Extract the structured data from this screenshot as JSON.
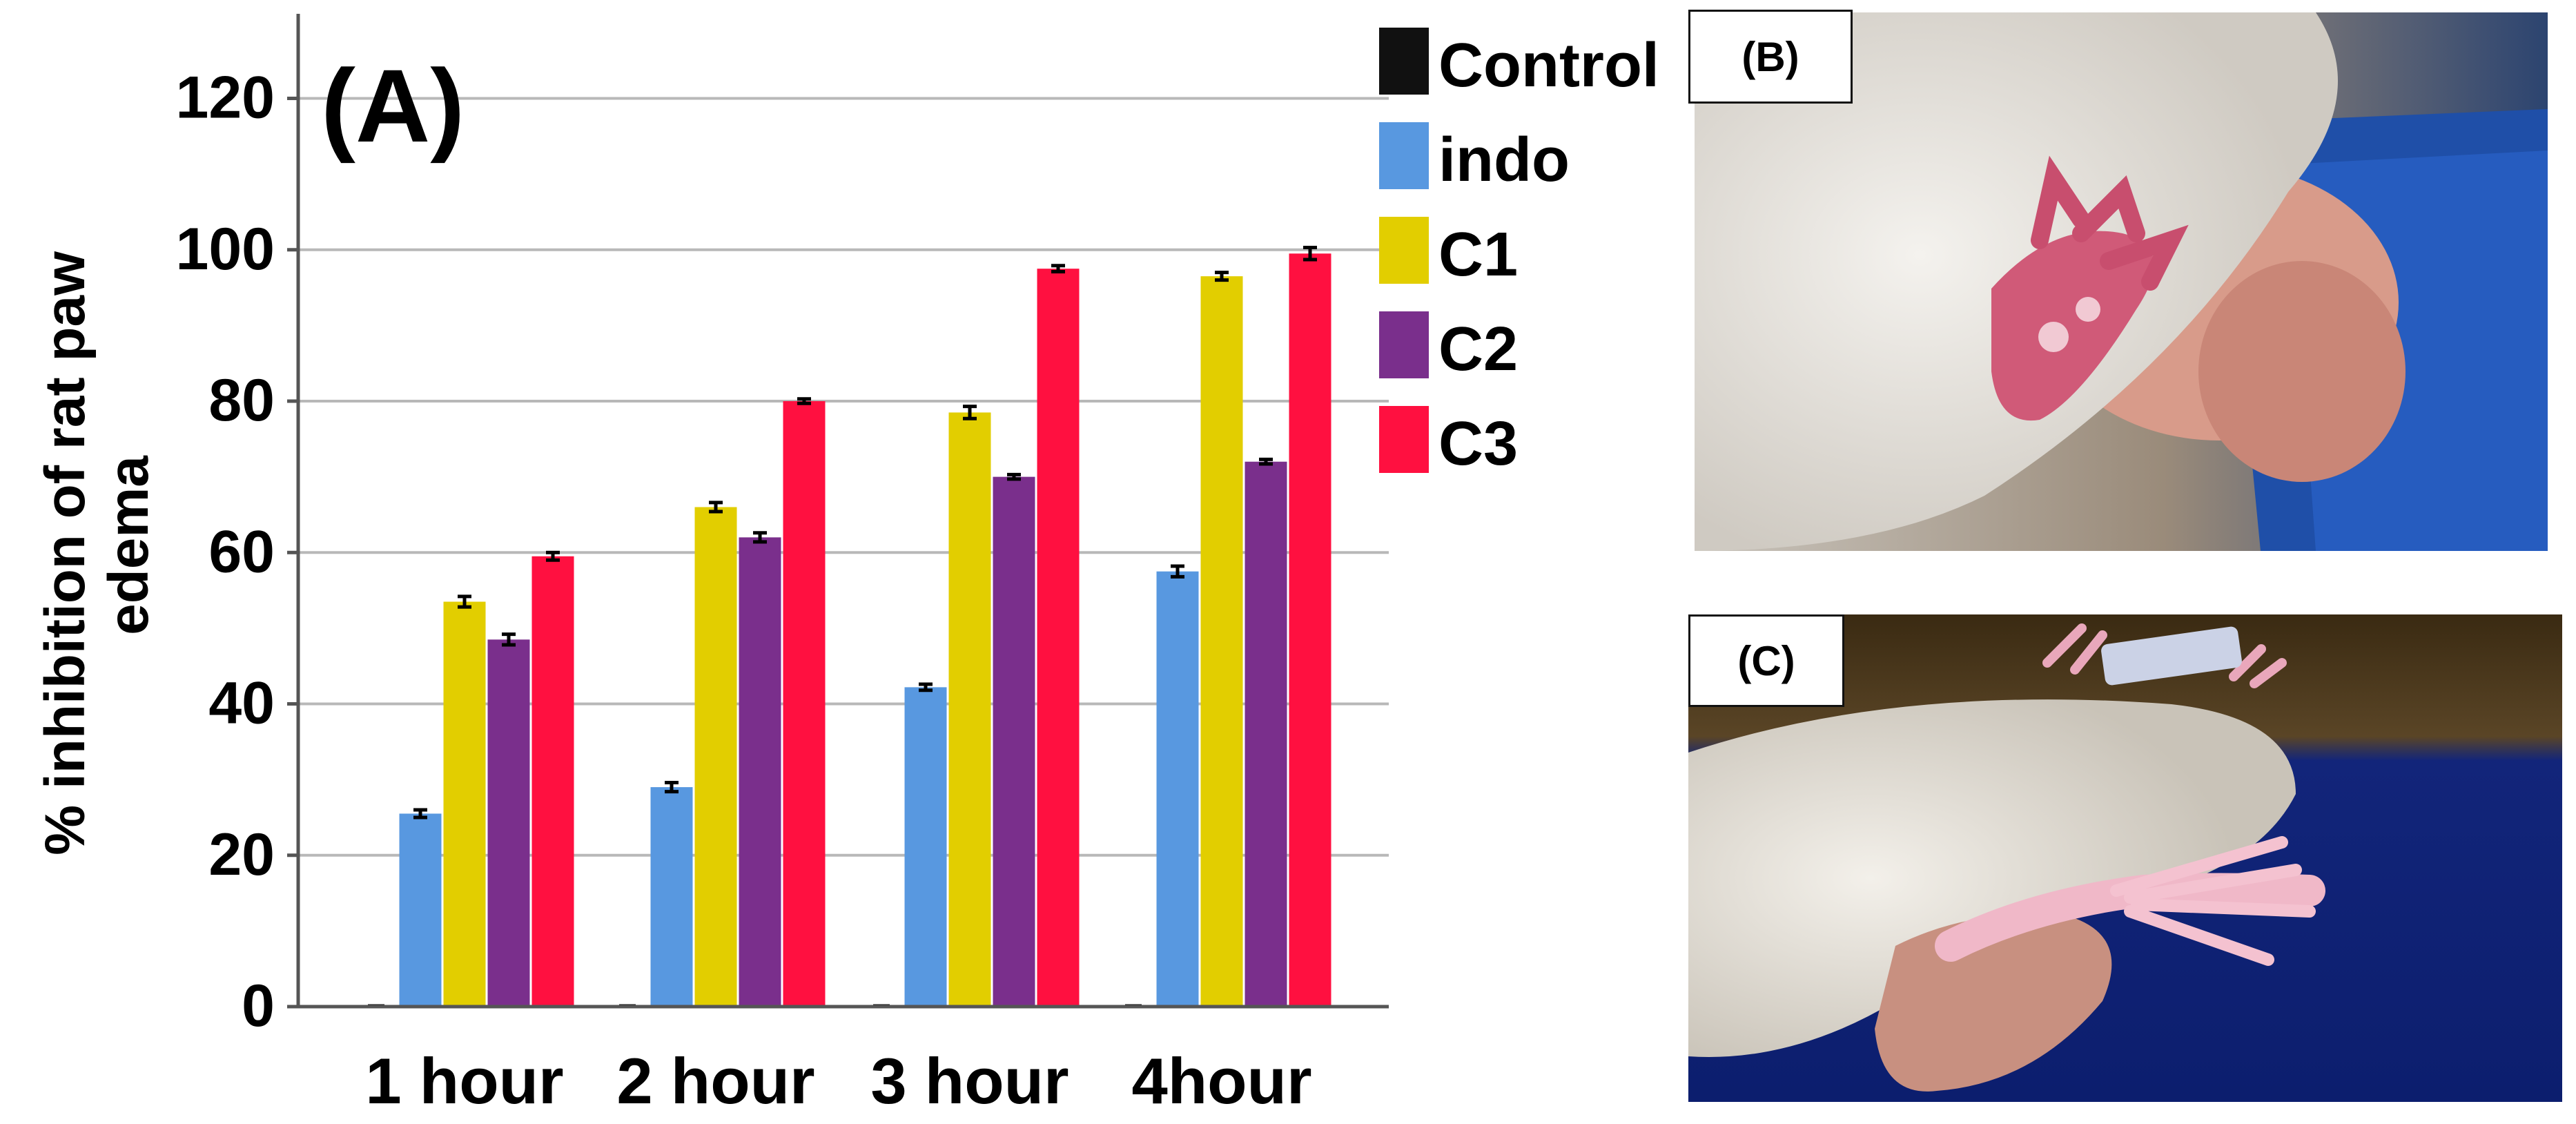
{
  "panels": {
    "a_label": "(A)",
    "b_label": "(B)",
    "c_label": "(C)"
  },
  "chart_data": {
    "type": "bar",
    "title": "",
    "xlabel": "",
    "ylabel": "% inhibition of rat paw edema",
    "ylim": [
      0,
      133
    ],
    "yticks": [
      0,
      20,
      40,
      60,
      80,
      100,
      120
    ],
    "grid": true,
    "legend_position": "right, outside plot area",
    "categories": [
      "1 hour",
      "2 hour",
      "3 hour",
      "4hour"
    ],
    "series": [
      {
        "name": "Control",
        "color": "#111111",
        "values": [
          0,
          0,
          0,
          0
        ],
        "errors": [
          0,
          0,
          0,
          0
        ]
      },
      {
        "name": "indo",
        "color": "#5898E0",
        "values": [
          25.5,
          29,
          42.2,
          57.5
        ],
        "errors": [
          0.5,
          0.6,
          0.4,
          0.7
        ]
      },
      {
        "name": "C1",
        "color": "#E2CE00",
        "values": [
          53.5,
          66,
          78.5,
          96.5
        ],
        "errors": [
          0.7,
          0.6,
          0.8,
          0.5
        ]
      },
      {
        "name": "C2",
        "color": "#7A2F8C",
        "values": [
          48.5,
          62,
          70,
          72
        ],
        "errors": [
          0.7,
          0.6,
          0.3,
          0.3
        ]
      },
      {
        "name": "C3",
        "color": "#FF1040",
        "values": [
          59.5,
          80,
          97.5,
          99.5
        ],
        "errors": [
          0.5,
          0.3,
          0.4,
          0.8
        ]
      }
    ]
  }
}
